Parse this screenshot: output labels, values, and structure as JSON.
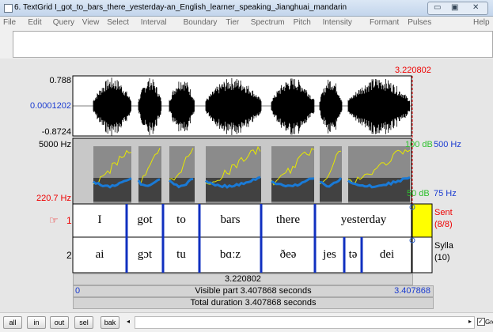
{
  "window": {
    "title": "6. TextGrid I_got_to_bars_there_yesterday-an_English_learner_speaking_Jianghuai_mandarin"
  },
  "menu": [
    "File",
    "Edit",
    "Query",
    "View",
    "Select",
    "Interval",
    "Boundary",
    "Tier",
    "Spectrum",
    "Pitch",
    "Intensity",
    "Formant",
    "Pulses"
  ],
  "help": "Help",
  "cursor_time": "3.220802",
  "waveform": {
    "max": "0.788",
    "cursor_value": "0.0001202",
    "min": "-0.8724"
  },
  "spectrogram": {
    "top_freq": "5000 Hz",
    "pitch_value": "220.7 Hz",
    "intensity_max": "100 dB",
    "pitch_max": "500 Hz",
    "intensity_min": "50 dB",
    "pitch_min": "75 Hz"
  },
  "tiers": [
    {
      "pointer": "☞",
      "number": "1",
      "name": "Sent",
      "count": "(8/8)",
      "intervals": [
        "I",
        "got",
        "to",
        "bars",
        "there",
        "yesterday"
      ]
    },
    {
      "number": "2",
      "name": "Sylla",
      "count": "(10)",
      "intervals": [
        "ai",
        "gɔt",
        "tu",
        "bɑːz",
        "ðeə",
        "jes",
        "tə",
        "dei"
      ]
    }
  ],
  "time_bars": {
    "cursor": "3.220802",
    "start": "0",
    "visible": "Visible part 3.407868 seconds",
    "end": "3.407868",
    "total": "Total duration 3.407868 seconds"
  },
  "buttons": [
    "all",
    "in",
    "out",
    "sel",
    "bak"
  ],
  "group": "Group"
}
